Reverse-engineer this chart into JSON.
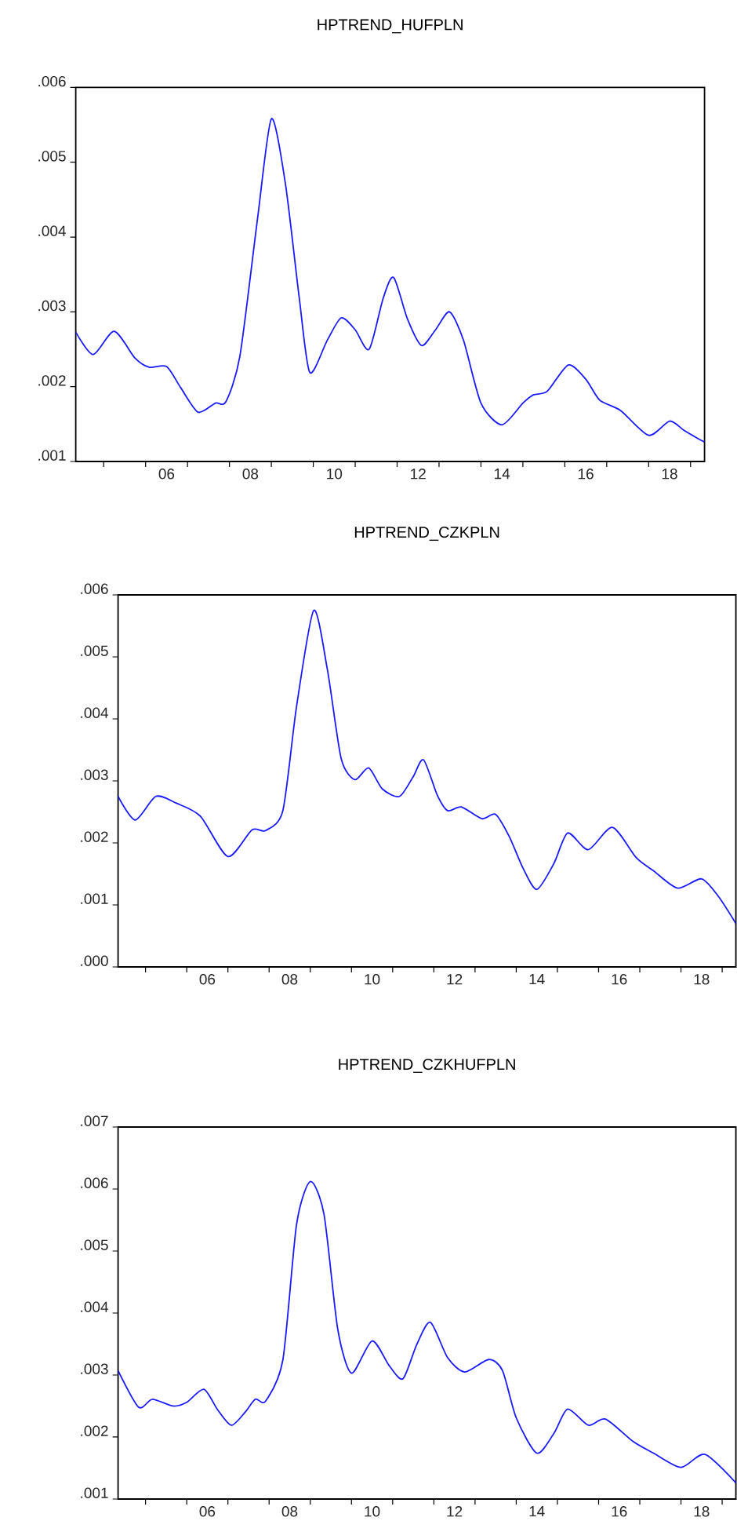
{
  "chart_data": [
    {
      "type": "line",
      "title": "HPTREND_HUFPLN",
      "x": [
        "2004-05",
        "2004-10",
        "2005-04",
        "2005-10",
        "2006-02",
        "2006-07",
        "2006-11",
        "2007-04",
        "2007-09",
        "2007-12",
        "2008-04",
        "2008-09",
        "2009-01",
        "2009-05",
        "2009-09",
        "2009-12",
        "2010-05",
        "2010-09",
        "2011-01",
        "2011-05",
        "2011-09",
        "2011-12",
        "2012-04",
        "2012-08",
        "2012-12",
        "2013-04",
        "2013-08",
        "2014-01",
        "2014-07",
        "2015-01",
        "2015-04",
        "2015-08",
        "2016-02",
        "2016-07",
        "2016-11",
        "2017-05",
        "2018-01",
        "2018-07",
        "2018-11",
        "2019-03",
        "2019-05"
      ],
      "series": [
        {
          "color": "#1a1aff",
          "values": [
            0.00273,
            0.00243,
            0.00274,
            0.00238,
            0.00226,
            0.00227,
            0.00199,
            0.00166,
            0.00178,
            0.0018,
            0.00241,
            0.00423,
            0.00558,
            0.00472,
            0.00318,
            0.00219,
            0.00262,
            0.00292,
            0.00276,
            0.0025,
            0.00318,
            0.00346,
            0.0029,
            0.00255,
            0.00276,
            0.003,
            0.00262,
            0.00178,
            0.00149,
            0.00178,
            0.00189,
            0.00194,
            0.00229,
            0.0021,
            0.00182,
            0.00168,
            0.00135,
            0.00154,
            0.00142,
            0.00131,
            0.00126
          ]
        }
      ],
      "xlim": [
        "2004-05",
        "2019-05"
      ],
      "ylim": [
        0.001,
        0.006
      ],
      "xticks": [
        {
          "value": "2005",
          "label": null
        },
        {
          "value": "2006",
          "label": null
        },
        {
          "value": "2006-07",
          "label": "06"
        },
        {
          "value": "2007",
          "label": null
        },
        {
          "value": "2008",
          "label": null
        },
        {
          "value": "2008-07",
          "label": "08"
        },
        {
          "value": "2009",
          "label": null
        },
        {
          "value": "2010",
          "label": null
        },
        {
          "value": "2010-07",
          "label": "10"
        },
        {
          "value": "2011",
          "label": null
        },
        {
          "value": "2012",
          "label": null
        },
        {
          "value": "2012-07",
          "label": "12"
        },
        {
          "value": "2013",
          "label": null
        },
        {
          "value": "2014",
          "label": null
        },
        {
          "value": "2014-07",
          "label": "14"
        },
        {
          "value": "2015",
          "label": null
        },
        {
          "value": "2016",
          "label": null
        },
        {
          "value": "2016-07",
          "label": "16"
        },
        {
          "value": "2017",
          "label": null
        },
        {
          "value": "2018",
          "label": null
        },
        {
          "value": "2018-07",
          "label": "18"
        },
        {
          "value": "2019",
          "label": null
        }
      ],
      "yticks": [
        {
          "value": 0.001,
          "label": ".001"
        },
        {
          "value": 0.002,
          "label": ".002"
        },
        {
          "value": 0.003,
          "label": ".003"
        },
        {
          "value": 0.004,
          "label": ".004"
        },
        {
          "value": 0.005,
          "label": ".005"
        },
        {
          "value": 0.006,
          "label": ".006"
        }
      ]
    },
    {
      "type": "line",
      "title": "HPTREND_CZKPLN",
      "x": [
        "2004-05",
        "2004-10",
        "2005-04",
        "2005-10",
        "2006-05",
        "2007-01",
        "2007-08",
        "2007-12",
        "2008-05",
        "2008-09",
        "2009-02",
        "2009-06",
        "2009-10",
        "2010-02",
        "2010-06",
        "2010-10",
        "2011-03",
        "2011-07",
        "2011-10",
        "2012-02",
        "2012-05",
        "2012-09",
        "2013-03",
        "2013-07",
        "2013-11",
        "2014-03",
        "2014-07",
        "2014-12",
        "2015-04",
        "2015-10",
        "2016-05",
        "2016-12",
        "2017-05",
        "2017-12",
        "2018-07",
        "2018-12",
        "2019-05"
      ],
      "series": [
        {
          "color": "#1a1aff",
          "values": [
            0.00275,
            0.00237,
            0.00275,
            0.00264,
            0.00243,
            0.00178,
            0.00221,
            0.0022,
            0.00252,
            0.0042,
            0.00575,
            0.00479,
            0.00336,
            0.00302,
            0.00321,
            0.00287,
            0.00275,
            0.00307,
            0.00334,
            0.00277,
            0.00252,
            0.00258,
            0.00239,
            0.00246,
            0.0021,
            0.00159,
            0.00125,
            0.00167,
            0.00216,
            0.00189,
            0.00225,
            0.00176,
            0.00155,
            0.00127,
            0.00142,
            0.00113,
            0.0007
          ]
        }
      ],
      "xlim": [
        "2004-05",
        "2019-05"
      ],
      "ylim": [
        0.0,
        0.006
      ],
      "xticks": [
        {
          "value": "2005",
          "label": null
        },
        {
          "value": "2006",
          "label": null
        },
        {
          "value": "2006-07",
          "label": "06"
        },
        {
          "value": "2007",
          "label": null
        },
        {
          "value": "2008",
          "label": null
        },
        {
          "value": "2008-07",
          "label": "08"
        },
        {
          "value": "2009",
          "label": null
        },
        {
          "value": "2010",
          "label": null
        },
        {
          "value": "2010-07",
          "label": "10"
        },
        {
          "value": "2011",
          "label": null
        },
        {
          "value": "2012",
          "label": null
        },
        {
          "value": "2012-07",
          "label": "12"
        },
        {
          "value": "2013",
          "label": null
        },
        {
          "value": "2014",
          "label": null
        },
        {
          "value": "2014-07",
          "label": "14"
        },
        {
          "value": "2015",
          "label": null
        },
        {
          "value": "2016",
          "label": null
        },
        {
          "value": "2016-07",
          "label": "16"
        },
        {
          "value": "2017",
          "label": null
        },
        {
          "value": "2018",
          "label": null
        },
        {
          "value": "2018-07",
          "label": "18"
        },
        {
          "value": "2019",
          "label": null
        }
      ],
      "yticks": [
        {
          "value": 0.0,
          "label": ".000"
        },
        {
          "value": 0.001,
          "label": ".001"
        },
        {
          "value": 0.002,
          "label": ".002"
        },
        {
          "value": 0.003,
          "label": ".003"
        },
        {
          "value": 0.004,
          "label": ".004"
        },
        {
          "value": 0.005,
          "label": ".005"
        },
        {
          "value": 0.006,
          "label": ".006"
        }
      ]
    },
    {
      "type": "line",
      "title": "HPTREND_CZKHUFPLN",
      "x": [
        "2004-05",
        "2004-11",
        "2005-03",
        "2005-09",
        "2006-01",
        "2006-06",
        "2006-10",
        "2007-02",
        "2007-06",
        "2007-09",
        "2007-12",
        "2008-05",
        "2008-09",
        "2009-01",
        "2009-05",
        "2009-09",
        "2010-01",
        "2010-07",
        "2010-12",
        "2011-04",
        "2011-08",
        "2011-12",
        "2012-05",
        "2012-10",
        "2013-05",
        "2013-09",
        "2014-01",
        "2014-07",
        "2014-12",
        "2015-04",
        "2015-10",
        "2016-03",
        "2016-11",
        "2017-05",
        "2018-01",
        "2018-08",
        "2019-05"
      ],
      "series": [
        {
          "color": "#1a1aff",
          "values": [
            0.00307,
            0.00248,
            0.00261,
            0.0025,
            0.00256,
            0.00277,
            0.00244,
            0.00219,
            0.0024,
            0.00261,
            0.00258,
            0.00324,
            0.00543,
            0.00612,
            0.00559,
            0.00374,
            0.00303,
            0.00355,
            0.00315,
            0.00294,
            0.00349,
            0.00385,
            0.00328,
            0.00305,
            0.00325,
            0.00307,
            0.00231,
            0.00174,
            0.00206,
            0.00245,
            0.00219,
            0.00229,
            0.00193,
            0.00174,
            0.00151,
            0.00172,
            0.00126
          ]
        }
      ],
      "xlim": [
        "2004-05",
        "2019-05"
      ],
      "ylim": [
        0.001,
        0.007
      ],
      "xticks": [
        {
          "value": "2005",
          "label": null
        },
        {
          "value": "2006",
          "label": null
        },
        {
          "value": "2006-07",
          "label": "06"
        },
        {
          "value": "2007",
          "label": null
        },
        {
          "value": "2008",
          "label": null
        },
        {
          "value": "2008-07",
          "label": "08"
        },
        {
          "value": "2009",
          "label": null
        },
        {
          "value": "2010",
          "label": null
        },
        {
          "value": "2010-07",
          "label": "10"
        },
        {
          "value": "2011",
          "label": null
        },
        {
          "value": "2012",
          "label": null
        },
        {
          "value": "2012-07",
          "label": "12"
        },
        {
          "value": "2013",
          "label": null
        },
        {
          "value": "2014",
          "label": null
        },
        {
          "value": "2014-07",
          "label": "14"
        },
        {
          "value": "2015",
          "label": null
        },
        {
          "value": "2016",
          "label": null
        },
        {
          "value": "2016-07",
          "label": "16"
        },
        {
          "value": "2017",
          "label": null
        },
        {
          "value": "2018",
          "label": null
        },
        {
          "value": "2018-07",
          "label": "18"
        },
        {
          "value": "2019",
          "label": null
        }
      ],
      "yticks": [
        {
          "value": 0.001,
          "label": ".001"
        },
        {
          "value": 0.002,
          "label": ".002"
        },
        {
          "value": 0.003,
          "label": ".003"
        },
        {
          "value": 0.004,
          "label": ".004"
        },
        {
          "value": 0.005,
          "label": ".005"
        },
        {
          "value": 0.006,
          "label": ".006"
        },
        {
          "value": 0.007,
          "label": ".007"
        }
      ]
    }
  ]
}
